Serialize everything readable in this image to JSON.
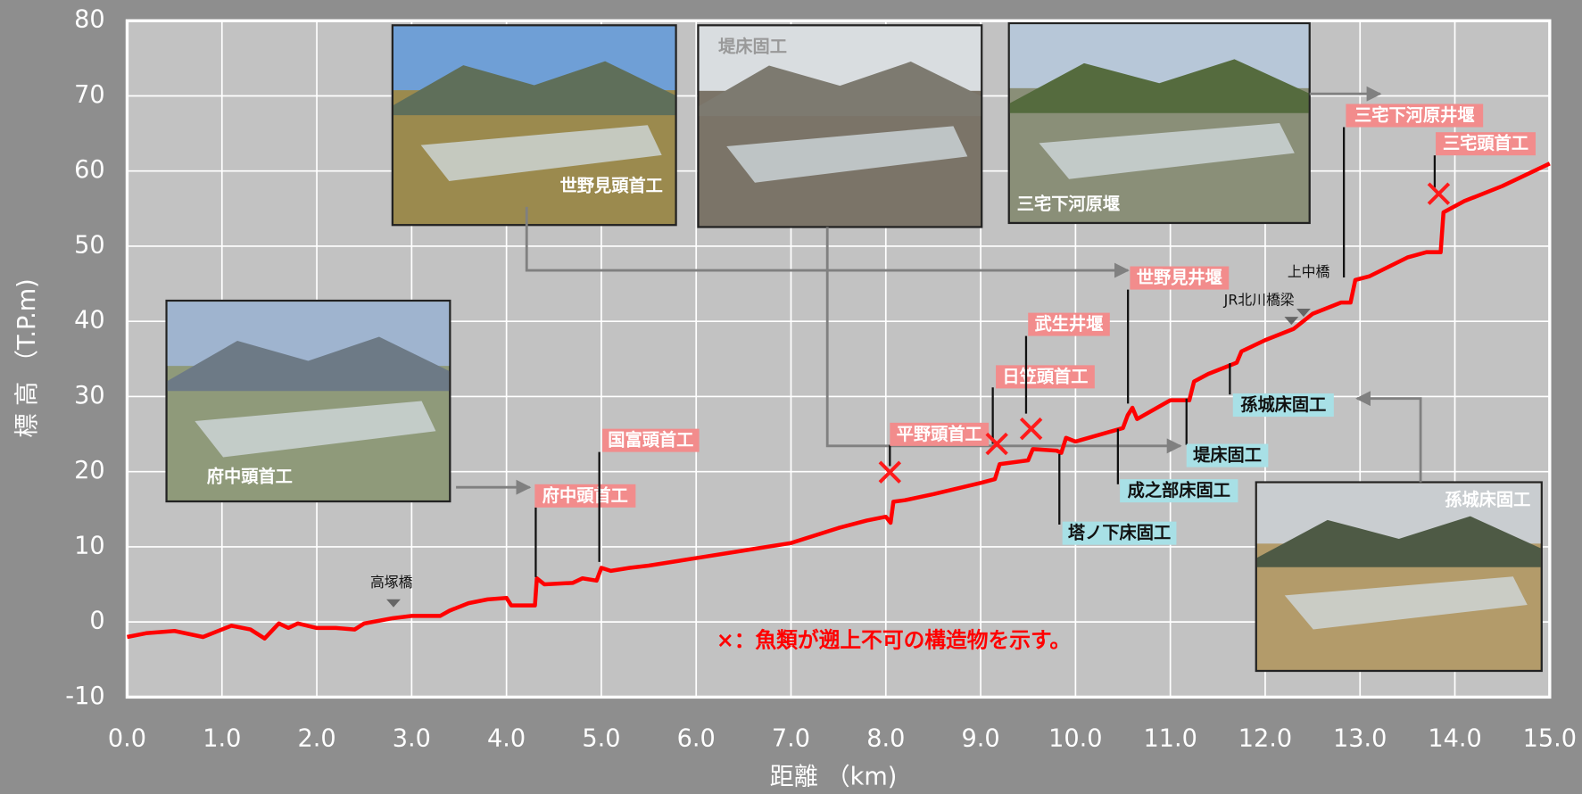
{
  "chart_data": {
    "type": "line",
    "x_label": "距離 （km)",
    "y_label": "標 高 （T.P.m)",
    "x": [
      0.0,
      0.2,
      0.5,
      0.8,
      1.0,
      1.1,
      1.3,
      1.45,
      1.6,
      1.7,
      1.8,
      2.0,
      2.2,
      2.4,
      2.5,
      2.8,
      3.0,
      3.3,
      3.4,
      3.6,
      3.8,
      4.0,
      4.05,
      4.3,
      4.32,
      4.4,
      4.7,
      4.8,
      4.95,
      5.0,
      5.1,
      5.3,
      5.5,
      6.0,
      6.5,
      7.0,
      7.5,
      7.8,
      8.0,
      8.05,
      8.08,
      8.2,
      8.5,
      9.0,
      9.15,
      9.2,
      9.5,
      9.55,
      9.8,
      9.85,
      9.9,
      10.0,
      10.5,
      10.55,
      10.6,
      10.65,
      11.0,
      11.2,
      11.25,
      11.4,
      11.6,
      11.7,
      11.75,
      12.0,
      12.3,
      12.5,
      12.8,
      12.9,
      12.95,
      13.1,
      13.5,
      13.7,
      13.85,
      13.88,
      14.1,
      14.5,
      15.0
    ],
    "values": [
      -2,
      -1.5,
      -1.2,
      -2,
      -1,
      -0.5,
      -1,
      -2.2,
      -0.2,
      -0.8,
      -0.2,
      -0.8,
      -0.8,
      -1,
      -0.2,
      0.5,
      0.8,
      0.8,
      1.5,
      2.5,
      3,
      3.2,
      2.2,
      2.2,
      5.8,
      5,
      5.2,
      5.8,
      5.5,
      7.2,
      6.8,
      7.2,
      7.5,
      8.5,
      9.5,
      10.5,
      12.5,
      13.5,
      14,
      13.2,
      16,
      16.2,
      17,
      18.5,
      19,
      21,
      21.5,
      23,
      22.8,
      22.5,
      24.5,
      24,
      25.8,
      27.5,
      28.5,
      27,
      29.5,
      29.5,
      32,
      33,
      34,
      34.5,
      36,
      37.5,
      39,
      41,
      42.5,
      42.5,
      45.5,
      46,
      48.5,
      49.2,
      49.2,
      54.5,
      56,
      58,
      61
    ],
    "color": "#ff0000",
    "xlim": [
      0,
      15
    ],
    "ylim": [
      -10,
      80
    ],
    "xticks": [
      {
        "value": 0,
        "label": "0.0"
      },
      {
        "value": 1,
        "label": "1.0"
      },
      {
        "value": 2,
        "label": "2.0"
      },
      {
        "value": 3,
        "label": "3.0"
      },
      {
        "value": 4,
        "label": "4.0"
      },
      {
        "value": 5,
        "label": "5.0"
      },
      {
        "value": 6,
        "label": "6.0"
      },
      {
        "value": 7,
        "label": "7.0"
      },
      {
        "value": 8,
        "label": "8.0"
      },
      {
        "value": 9,
        "label": "9.0"
      },
      {
        "value": 10,
        "label": "10.0"
      },
      {
        "value": 11,
        "label": "11.0"
      },
      {
        "value": 12,
        "label": "12.0"
      },
      {
        "value": 13,
        "label": "13.0"
      },
      {
        "value": 14,
        "label": "14.0"
      },
      {
        "value": 15,
        "label": "15.0"
      }
    ],
    "yticks": [
      -10,
      0,
      10,
      20,
      30,
      40,
      50,
      60,
      70,
      80
    ],
    "grid": true,
    "weir_labels": [
      "府中頭首工",
      "国富頭首工",
      "平野頭首工",
      "日笠頭首工",
      "武生井堰",
      "世野見井堰",
      "三宅下河原井堰",
      "三宅頭首工"
    ],
    "groundsill_labels": [
      "塔ノ下床固工",
      "成之部床固工",
      "堤床固工",
      "孫城床固工"
    ],
    "bridge_labels": [
      "高塚橋",
      "JR北川橋梁",
      "上中橋"
    ],
    "photo_captions": [
      "府中頭首工",
      "世野見頭首工",
      "堤床固工",
      "三宅下河原堰",
      "孫城床固工"
    ],
    "note": "×：魚類が遡上不可の構造物を示す。"
  }
}
